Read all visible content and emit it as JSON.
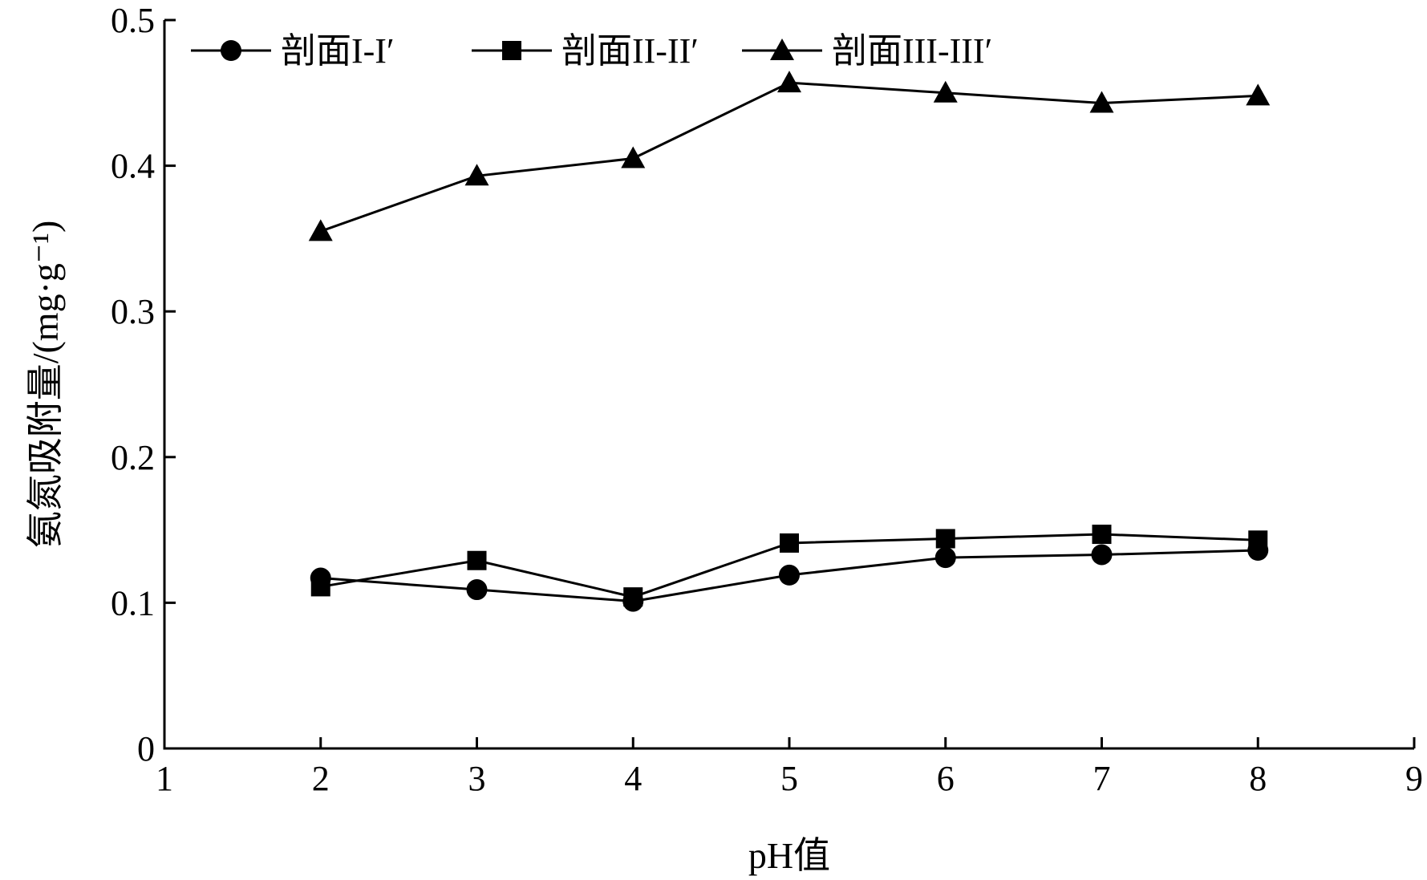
{
  "chart_data": {
    "type": "line",
    "xlabel": "pH值",
    "ylabel": "氨氮吸附量/(mg·g⁻¹)",
    "xlim": [
      1,
      9
    ],
    "ylim": [
      0,
      0.5
    ],
    "x_ticks": [
      "1",
      "2",
      "3",
      "4",
      "5",
      "6",
      "7",
      "8",
      "9"
    ],
    "y_ticks": [
      "0",
      "0.1",
      "0.2",
      "0.3",
      "0.4",
      "0.5"
    ],
    "x": [
      2,
      3,
      4,
      5,
      6,
      7,
      8
    ],
    "legend_position": "top-left",
    "grid": false,
    "series": [
      {
        "name": "剖面I-I′",
        "marker": "circle",
        "values": [
          0.117,
          0.109,
          0.101,
          0.119,
          0.131,
          0.133,
          0.136
        ]
      },
      {
        "name": "剖面II-II′",
        "marker": "square",
        "values": [
          0.111,
          0.129,
          0.104,
          0.141,
          0.144,
          0.147,
          0.143
        ]
      },
      {
        "name": "剖面III-III′",
        "marker": "triangle",
        "values": [
          0.355,
          0.393,
          0.405,
          0.457,
          0.45,
          0.443,
          0.448
        ]
      }
    ]
  }
}
